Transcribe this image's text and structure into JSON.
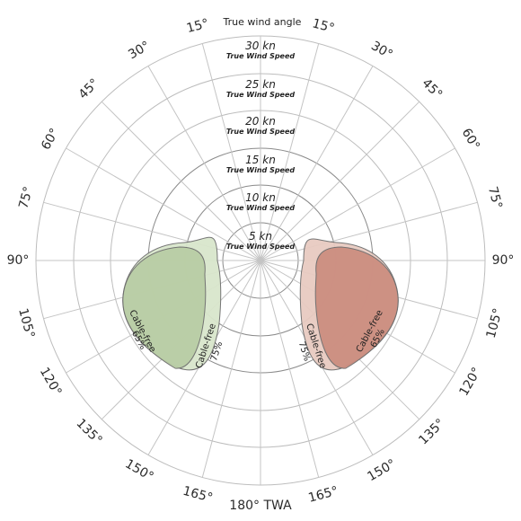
{
  "diagram": {
    "title": "True wind angle",
    "bottom_label": "180° TWA",
    "angle_labels": [
      "15°",
      "30°",
      "45°",
      "60°",
      "75°",
      "90°",
      "105°",
      "120°",
      "135°",
      "150°",
      "165°"
    ],
    "speed_rings": [
      {
        "value": "5 kn",
        "sub": "True Wind Speed"
      },
      {
        "value": "10 kn",
        "sub": "True Wind Speed"
      },
      {
        "value": "15 kn",
        "sub": "True Wind Speed"
      },
      {
        "value": "20 kn",
        "sub": "True Wind Speed"
      },
      {
        "value": "25 kn",
        "sub": "True Wind Speed"
      },
      {
        "value": "30 kn",
        "sub": "True Wind Speed"
      }
    ],
    "zones": [
      {
        "name": "Cable-free",
        "percent": "65%",
        "side": "left",
        "color": "#b9cda5",
        "stroke": "#6e6e6e"
      },
      {
        "name": "Cable-free",
        "percent": "75%",
        "side": "left",
        "color": "#d9e6cc",
        "stroke": "#6e6e6e"
      },
      {
        "name": "Cable-free",
        "percent": "75%",
        "side": "right",
        "color": "#e8cbc1",
        "stroke": "#6e6e6e"
      },
      {
        "name": "Cable-free",
        "percent": "65%",
        "side": "right",
        "color": "#cc8e80",
        "stroke": "#6e6e6e"
      }
    ]
  }
}
